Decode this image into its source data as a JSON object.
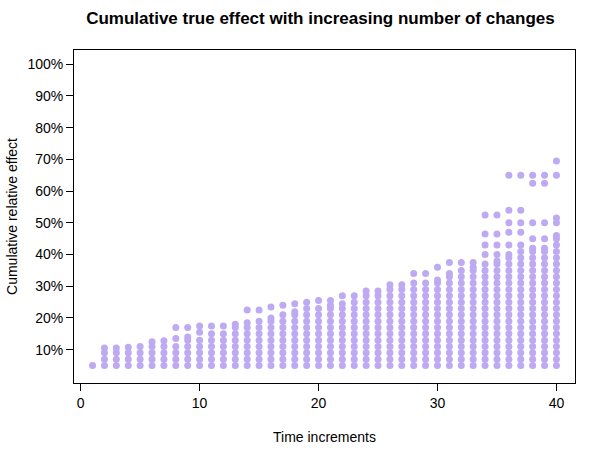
{
  "chart_data": {
    "type": "scatter",
    "title": "Cumulative true effect with increasing number of changes",
    "x_label": "Time increments",
    "y_label": "Cumulative relative effect",
    "color": "#bdaaf2",
    "marker": "circle",
    "grid": false,
    "xlim": [
      -0.56,
      41.56
    ],
    "xticks": [
      0,
      10,
      20,
      30,
      40
    ],
    "ylim": [
      -0.5,
      104.5
    ],
    "yticks": [
      {
        "value": 10,
        "label": "10%"
      },
      {
        "value": 20,
        "label": "20%"
      },
      {
        "value": 30,
        "label": "30%"
      },
      {
        "value": 40,
        "label": "40%"
      },
      {
        "value": 50,
        "label": "50%"
      },
      {
        "value": 60,
        "label": "60%"
      },
      {
        "value": 70,
        "label": "70%"
      },
      {
        "value": 80,
        "label": "80%"
      },
      {
        "value": 90,
        "label": "90%"
      },
      {
        "value": 100,
        "label": "100%"
      }
    ],
    "x": [
      1,
      2,
      3,
      4,
      5,
      6,
      7,
      8,
      9,
      10,
      11,
      12,
      13,
      14,
      15,
      16,
      17,
      18,
      19,
      20,
      21,
      22,
      23,
      24,
      25,
      26,
      27,
      28,
      29,
      30,
      31,
      32,
      33,
      34,
      35,
      36,
      37,
      38,
      39,
      40
    ],
    "values": [
      [
        5
      ],
      [
        5,
        7,
        9,
        10.5
      ],
      [
        5,
        7,
        9,
        10.5
      ],
      [
        5,
        7,
        9,
        10.8
      ],
      [
        5,
        7,
        9,
        11
      ],
      [
        5,
        7,
        9,
        11,
        12.5
      ],
      [
        5,
        7,
        9,
        11,
        12.8
      ],
      [
        5,
        7,
        9,
        11,
        13.5,
        17
      ],
      [
        5,
        7,
        9,
        11,
        13,
        14,
        17
      ],
      [
        5,
        7,
        9,
        11,
        13,
        15.5,
        17.5
      ],
      [
        5,
        7,
        9,
        11,
        13,
        15,
        17.5
      ],
      [
        5,
        7,
        9,
        11,
        13,
        15,
        17.5
      ],
      [
        5,
        7,
        9,
        11,
        13,
        15,
        17,
        18
      ],
      [
        5,
        7,
        9,
        11,
        13,
        15,
        17,
        18.5,
        22.5
      ],
      [
        5,
        7,
        9,
        11,
        13,
        15,
        17,
        19,
        22.5
      ],
      [
        5,
        7,
        9,
        11,
        13,
        15,
        17,
        19,
        20,
        23.5
      ],
      [
        5,
        7,
        9,
        11,
        13,
        15,
        17,
        19,
        21,
        24
      ],
      [
        5,
        7,
        9,
        11,
        13,
        15,
        17,
        19,
        21,
        22,
        24.5
      ],
      [
        5,
        7,
        9,
        11,
        13,
        15,
        17,
        19,
        21,
        23,
        25
      ],
      [
        5,
        7,
        9,
        11,
        13,
        15,
        17,
        19,
        21,
        23,
        25.5
      ],
      [
        5,
        7,
        9,
        11,
        13,
        15,
        17,
        19,
        21,
        23,
        24,
        25.5
      ],
      [
        5,
        7,
        9,
        11,
        13,
        15,
        17,
        19,
        21,
        23,
        24.5,
        27
      ],
      [
        5,
        7,
        9,
        11,
        13,
        15,
        17,
        19,
        21,
        23,
        25,
        27
      ],
      [
        5,
        7,
        9,
        11,
        13,
        15,
        17,
        19,
        21,
        23,
        25,
        27,
        28.5
      ],
      [
        5,
        7,
        9,
        11,
        13,
        15,
        17,
        19,
        21,
        23,
        25,
        27,
        28.5
      ],
      [
        5,
        7,
        9,
        11,
        13,
        15,
        17,
        19,
        21,
        23,
        25,
        27,
        29,
        30.5
      ],
      [
        5,
        7,
        9,
        11,
        13,
        15,
        17,
        19,
        21,
        23,
        25,
        27,
        29,
        30.5
      ],
      [
        5,
        7,
        9,
        11,
        13,
        15,
        17,
        19,
        21,
        23,
        25,
        27,
        29,
        31,
        34
      ],
      [
        5,
        7,
        9,
        11,
        13,
        15,
        17,
        19,
        21,
        23,
        25,
        27,
        29,
        31,
        34
      ],
      [
        5,
        7,
        9,
        11,
        13,
        15,
        17,
        19,
        21,
        23,
        25,
        27,
        29,
        31,
        32,
        36
      ],
      [
        5,
        7,
        9,
        11,
        13,
        15,
        17,
        19,
        21,
        23,
        25,
        27,
        29,
        31,
        33,
        34,
        37.5
      ],
      [
        5,
        7,
        9,
        11,
        13,
        15,
        17,
        19,
        21,
        23,
        25,
        27,
        29,
        31,
        33,
        35,
        37.5
      ],
      [
        5,
        7,
        9,
        11,
        13,
        15,
        17,
        19,
        21,
        23,
        25,
        27,
        29,
        31,
        33,
        35,
        36,
        37.5
      ],
      [
        5,
        7,
        9,
        11,
        13,
        15,
        17,
        19,
        21,
        23,
        25,
        27,
        29,
        31,
        33,
        35,
        37,
        40,
        43,
        46.5,
        52.5
      ],
      [
        5,
        7,
        9,
        11,
        13,
        15,
        17,
        19,
        21,
        23,
        25,
        27,
        29,
        31,
        33,
        35,
        37,
        38,
        40,
        43,
        46.5,
        52.5
      ],
      [
        5,
        7,
        9,
        11,
        13,
        15,
        17,
        19,
        21,
        23,
        25,
        27,
        29,
        31,
        33,
        35,
        37,
        39,
        40,
        43,
        47,
        50,
        54,
        65
      ],
      [
        5,
        7,
        9,
        11,
        13,
        15,
        17,
        19,
        21,
        23,
        25,
        27,
        29,
        31,
        33,
        35,
        37,
        39,
        41,
        43,
        47,
        50,
        54,
        65
      ],
      [
        5,
        7,
        9,
        11,
        13,
        15,
        17,
        19,
        21,
        23,
        25,
        27,
        29,
        31,
        33,
        35,
        37,
        39,
        41,
        42,
        45,
        50,
        62.5,
        65
      ],
      [
        5,
        7,
        9,
        11,
        13,
        15,
        17,
        19,
        21,
        23,
        25,
        27,
        29,
        31,
        33,
        35,
        37,
        39,
        41,
        42,
        45,
        50,
        62.5,
        65
      ],
      [
        5,
        7,
        9,
        11,
        13,
        15,
        17,
        19,
        21,
        23,
        25,
        27,
        29,
        31,
        33,
        35,
        37,
        39,
        41,
        43,
        45,
        46,
        50,
        51.5,
        65,
        69.5
      ]
    ]
  }
}
